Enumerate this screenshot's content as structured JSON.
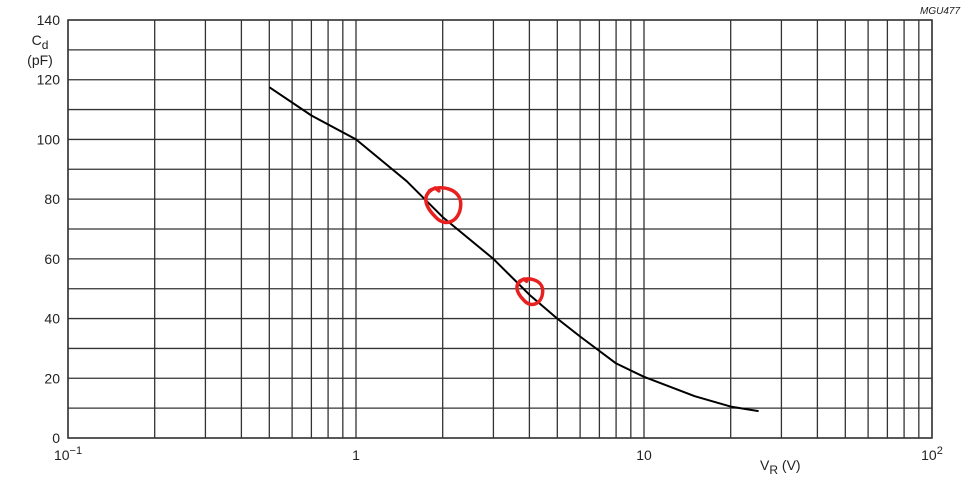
{
  "chart_data": {
    "type": "line",
    "code_label": "MGU477",
    "xlabel_main": "V",
    "xlabel_sub": "R",
    "xlabel_unit": " (V)",
    "ylabel_main": "C",
    "ylabel_sub": "d",
    "ylabel_unit": "(pF)",
    "xscale": "log",
    "xlim": [
      0.1,
      100
    ],
    "ylim": [
      0,
      140
    ],
    "grid": true,
    "x_ticks": [
      {
        "value": 0.1,
        "base": "10",
        "exp": "−1"
      },
      {
        "value": 1,
        "base": "1",
        "exp": ""
      },
      {
        "value": 10,
        "base": "10",
        "exp": ""
      },
      {
        "value": 100,
        "base": "10",
        "exp": "2"
      }
    ],
    "y_ticks": [
      0,
      20,
      40,
      60,
      80,
      100,
      120,
      140
    ],
    "series": [
      {
        "x": [
          0.5,
          0.7,
          1,
          1.5,
          2,
          3,
          4,
          5,
          6,
          8,
          10,
          15,
          20,
          25
        ],
        "y": [
          117.5,
          108,
          100,
          86,
          74,
          60,
          48,
          40,
          34,
          25,
          20.5,
          14,
          10.5,
          9
        ],
        "color": "#000000"
      }
    ],
    "annotations": [
      {
        "shape": "hand-drawn circle",
        "x": 2,
        "y": 78,
        "color": "#e82020"
      },
      {
        "shape": "hand-drawn circle",
        "x": 4,
        "y": 49,
        "color": "#e82020"
      }
    ]
  }
}
